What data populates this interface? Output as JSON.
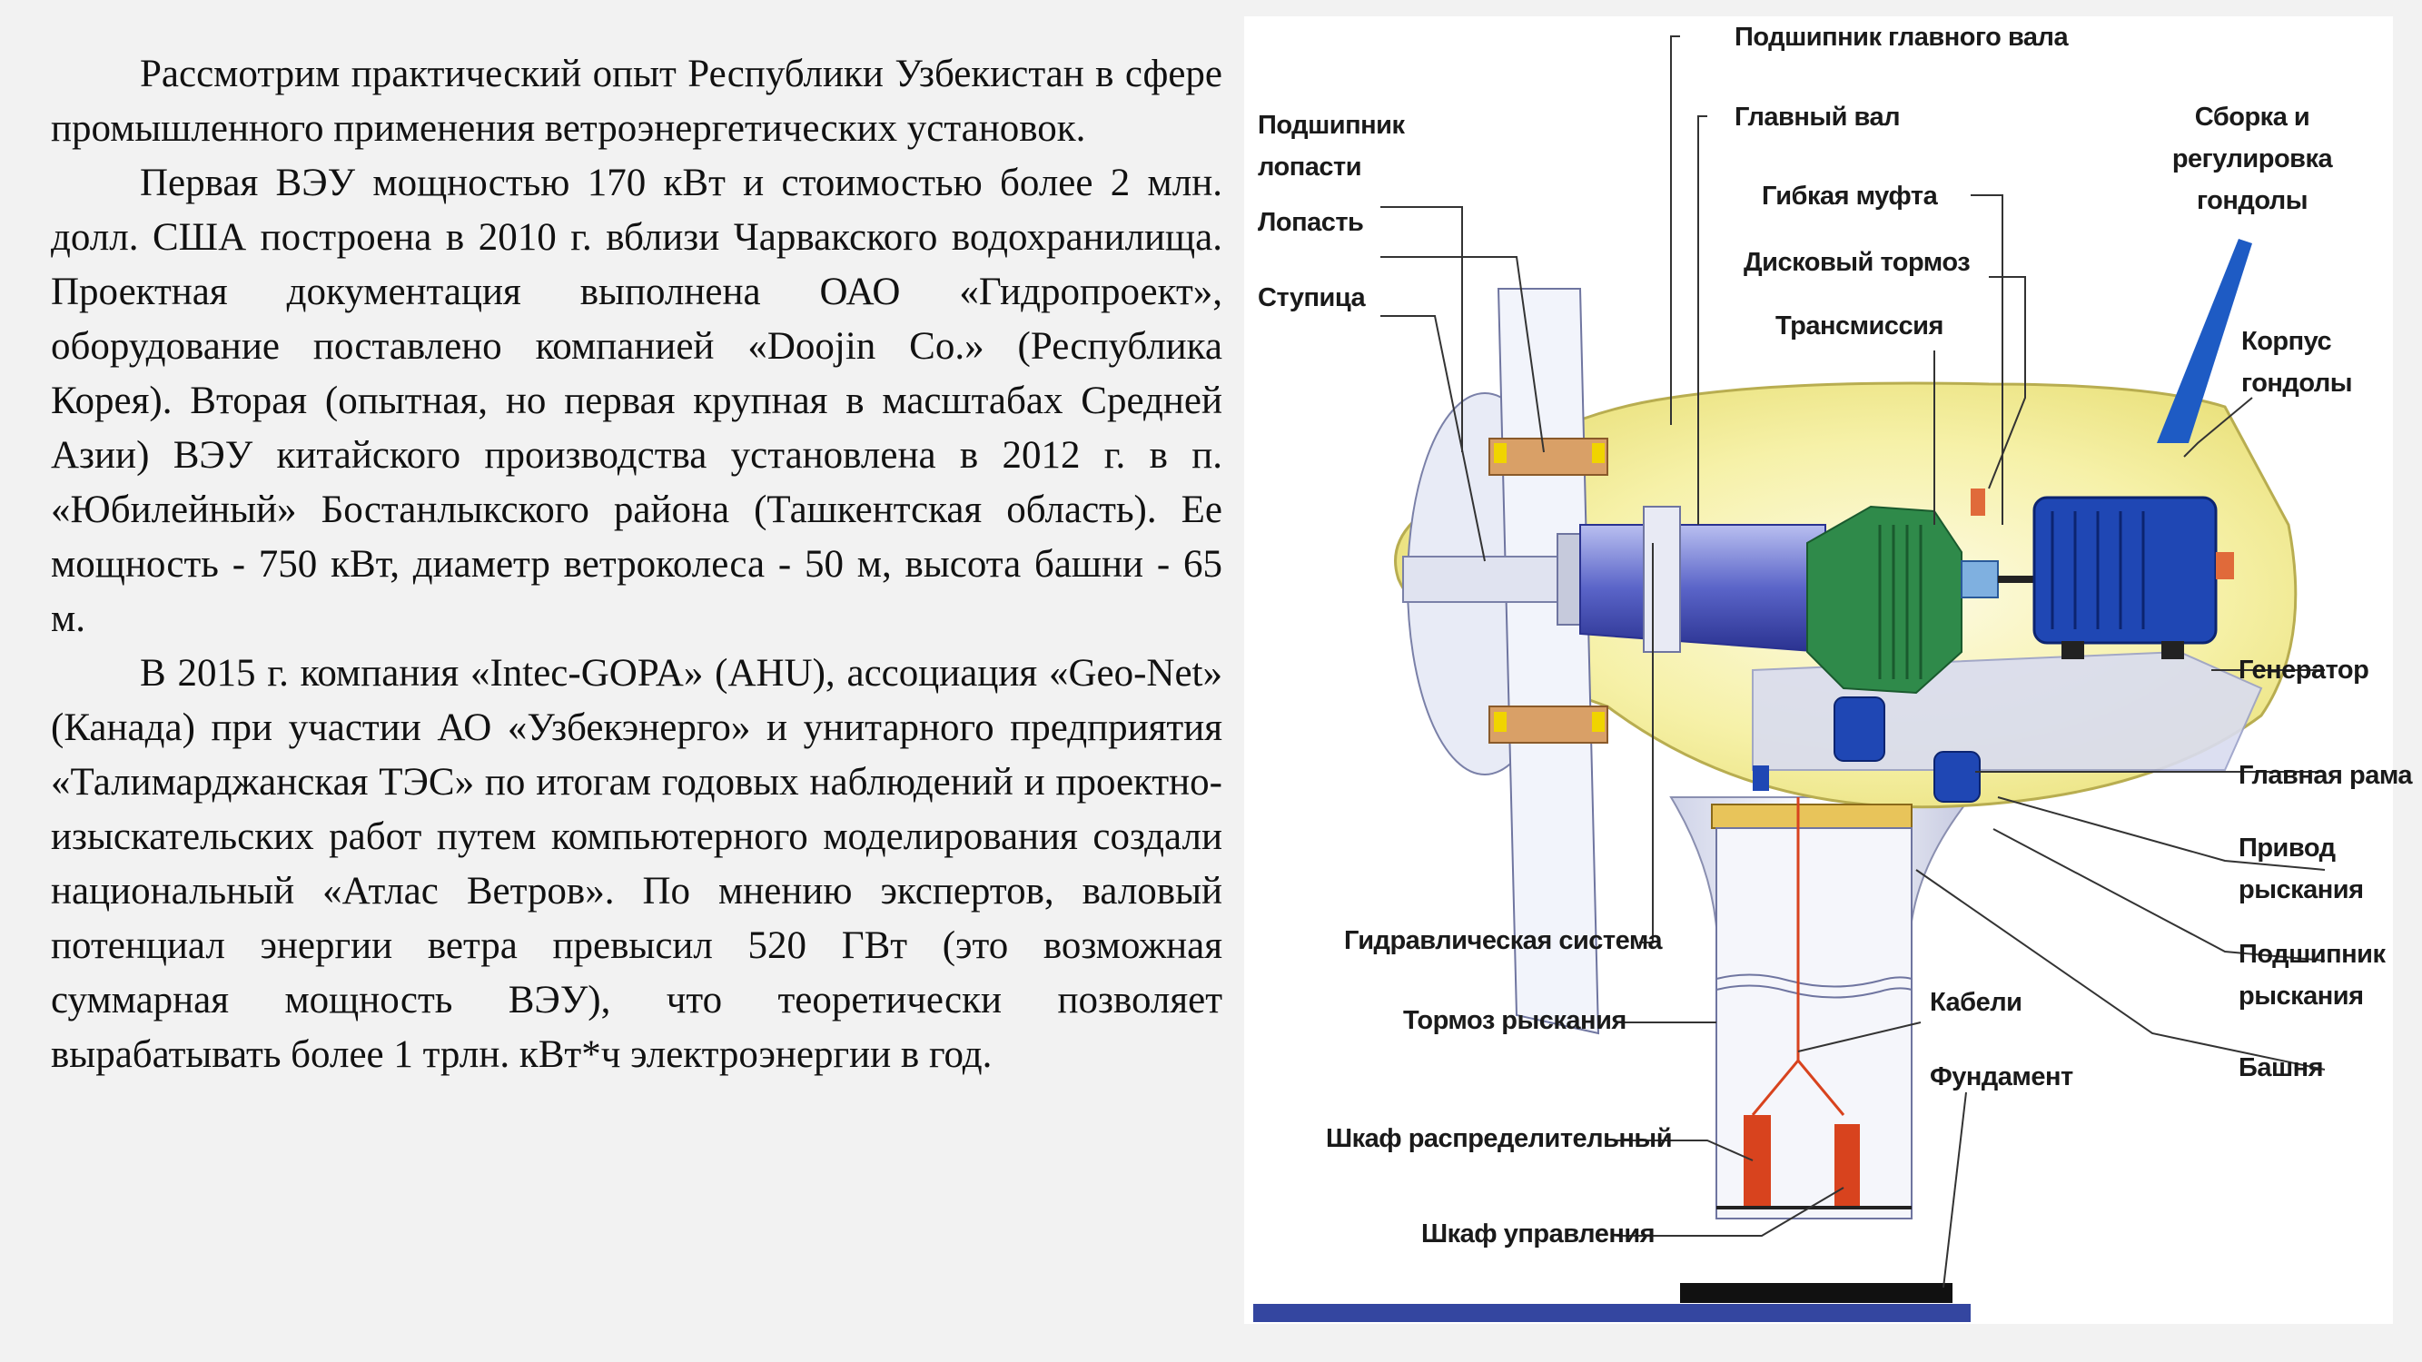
{
  "text": {
    "paragraphs": [
      "Рассмотрим практический опыт Республики Узбекистан в сфере промышленного применения ветроэнергетических установок.",
      "Первая ВЭУ мощностью 170 кВт и стоимостью более 2 млн. долл. США построена в 2010 г. вблизи Чарвакского водохранилища. Проектная документация выполнена ОАО «Гидропроект», оборудование поставлено компанией «Doojin Co.» (Республика Корея). Вторая (опытная, но первая крупная в масштабах Средней Азии) ВЭУ китайского производства установлена в 2012 г. в п. «Юбилейный» Бостанлыкского района (Ташкентская область). Ее мощность - 750 кВт, диаметр ветроколеса - 50 м, высота башни - 65 м.",
      "В 2015 г. компания «Intec-GOPA» (AHU), ассоциация «Geo-Net» (Канада) при участии АО «Узбекэнерго» и унитарного предприятия «Талимарджанская ТЭС» по итогам годовых наблюдений и проектно-изыскательских работ путем компьютерного моделирования создали национальный «Атлас Ветров». По мнению экспертов, валовый потенциал энергии ветра превысил 520 ГВт (это возможная суммарная мощность ВЭУ), что теоретически позволяет вырабатывать более 1 трлн. кВт*ч электроэнергии в год."
    ]
  },
  "diagram": {
    "labels": {
      "main_shaft_bearing": "Подшипник главного вала",
      "main_shaft": "Главный вал",
      "nacelle_assembly": "Сборка и регулировка гондолы",
      "blade_bearing": "Подшипник лопасти",
      "blade": "Лопасть",
      "hub": "Ступица",
      "flexible_coupling": "Гибкая муфта",
      "disc_brake": "Дисковый тормоз",
      "transmission": "Трансмиссия",
      "nacelle_housing": "Корпус гондолы",
      "generator": "Генератор",
      "main_frame": "Главная рама",
      "yaw_drive": "Привод рыскания",
      "yaw_bearing": "Подшипник рыскания",
      "tower": "Башня",
      "hydraulic_system": "Гидравлическая система",
      "yaw_brake": "Тормоз рыскания",
      "cables": "Кабели",
      "foundation": "Фундамент",
      "distribution_cabinet": "Шкаф распределительный",
      "control_cabinet": "Шкаф управления"
    },
    "colors": {
      "nacelle_fill": "#f4ee9c",
      "generator": "#1f47b4",
      "gearbox": "#2f8a4a",
      "tower_top": "#e8c45a",
      "cabinet": "#d8431e",
      "ground": "#3446a0",
      "weather_vane": "#1e5bc4"
    }
  }
}
